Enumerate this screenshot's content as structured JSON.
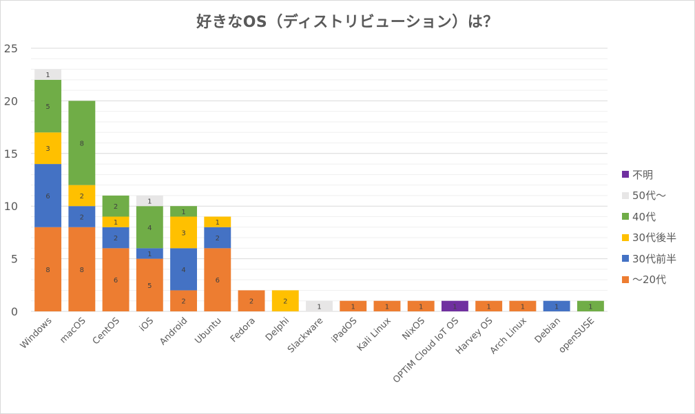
{
  "chart_data": {
    "type": "bar",
    "stacked": true,
    "title": "好きなOS（ディストリビューション）は？",
    "xlabel": "",
    "ylabel": "",
    "ylim": [
      0,
      25
    ],
    "yticks": [
      0,
      5,
      10,
      15,
      20,
      25
    ],
    "grid": true,
    "minor_grid_step": 1,
    "legend_position": "right",
    "categories": [
      "Windows",
      "macOS",
      "CentOS",
      "iOS",
      "Android",
      "Ubuntu",
      "Fedora",
      "Delphi",
      "Slackware",
      "iPadOS",
      "Kali Linux",
      "NixOS",
      "OPTiM Cloud  IoT OS",
      "Harvey OS",
      "Arch Linux",
      "Debian",
      "openSUSE"
    ],
    "series": [
      {
        "name": "～20代",
        "color": "#ED7D31",
        "values": [
          8,
          8,
          6,
          5,
          2,
          6,
          2,
          0,
          0,
          1,
          1,
          1,
          0,
          1,
          1,
          0,
          0
        ]
      },
      {
        "name": "30代前半",
        "color": "#4472C4",
        "values": [
          6,
          2,
          2,
          1,
          4,
          2,
          0,
          0,
          0,
          0,
          0,
          0,
          0,
          0,
          0,
          1,
          0
        ]
      },
      {
        "name": "30代後半",
        "color": "#FFC000",
        "values": [
          3,
          2,
          1,
          0,
          3,
          1,
          0,
          2,
          0,
          0,
          0,
          0,
          0,
          0,
          0,
          0,
          0
        ]
      },
      {
        "name": "40代",
        "color": "#70AD47",
        "values": [
          5,
          8,
          2,
          4,
          1,
          0,
          0,
          0,
          0,
          0,
          0,
          0,
          0,
          0,
          0,
          0,
          1
        ]
      },
      {
        "name": "50代～",
        "color": "#E7E6E6",
        "values": [
          1,
          0,
          0,
          1,
          0,
          0,
          0,
          0,
          1,
          0,
          0,
          0,
          0,
          0,
          0,
          0,
          0
        ]
      },
      {
        "name": "不明",
        "color": "#7030A0",
        "values": [
          0,
          0,
          0,
          0,
          0,
          0,
          0,
          0,
          0,
          0,
          0,
          0,
          1,
          0,
          0,
          0,
          0
        ]
      }
    ],
    "legend_order": [
      "不明",
      "50代～",
      "40代",
      "30代後半",
      "30代前半",
      "～20代"
    ]
  }
}
